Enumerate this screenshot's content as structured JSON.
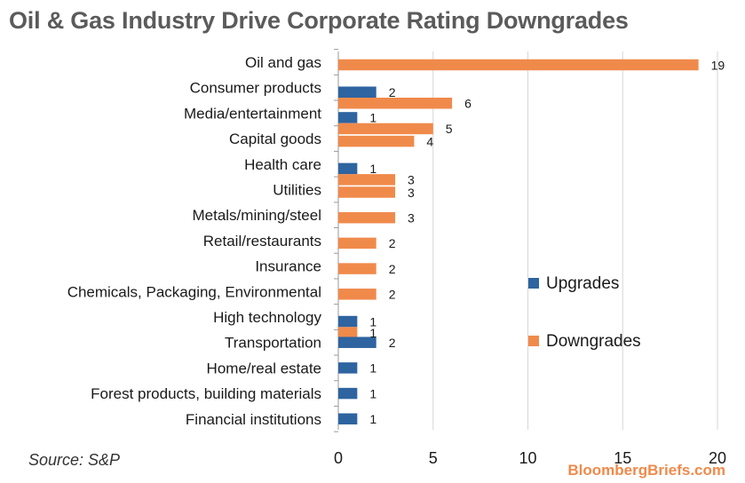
{
  "title": "Oil & Gas Industry Drive Corporate Rating Downgrades",
  "source": "Source: S&P",
  "brand": "BloombergBriefs.com",
  "colors": {
    "upgrades": "#2e64a0",
    "downgrades": "#f08a4b",
    "grid": "#d6d6d6",
    "axis": "#9a9a9a"
  },
  "chart_data": {
    "type": "bar",
    "orientation": "horizontal",
    "categories": [
      "Oil and gas",
      "Consumer products",
      "Media/entertainment",
      "Capital goods",
      "Health care",
      "Utilities",
      "Metals/mining/steel",
      "Retail/restaurants",
      "Insurance",
      "Chemicals, Packaging, Environmental",
      "High technology",
      "Transportation",
      "Home/real estate",
      "Forest products, building materials",
      "Financial institutions"
    ],
    "series": [
      {
        "name": "Upgrades",
        "color": "#2e64a0",
        "values": [
          0,
          2,
          1,
          0,
          1,
          0,
          0,
          0,
          0,
          0,
          1,
          2,
          1,
          1,
          1
        ]
      },
      {
        "name": "Downgrades",
        "color": "#f08a4b",
        "values": [
          19,
          6,
          5,
          4,
          3,
          3,
          3,
          2,
          2,
          2,
          1,
          0,
          0,
          0,
          0
        ]
      }
    ],
    "xlim": [
      0,
      20
    ],
    "xticks": [
      0,
      5,
      10,
      15,
      20
    ],
    "grid": true,
    "legend": {
      "placement": "right",
      "entries": [
        "Upgrades",
        "Downgrades"
      ]
    }
  }
}
